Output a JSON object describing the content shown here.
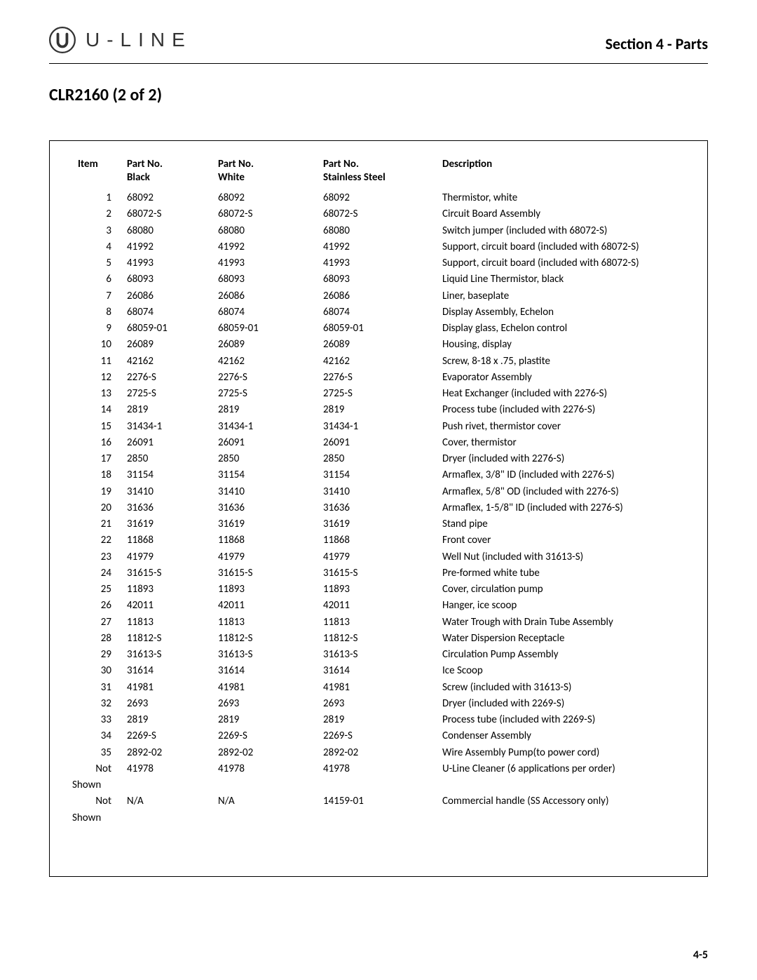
{
  "header": {
    "logo_text": "U-LINE",
    "section_title": "Section 4 - Parts"
  },
  "subtitle": "CLR2160 (2 of 2)",
  "page_number": "4-5",
  "table": {
    "columns": {
      "item": "Item",
      "black_l1": "Part No.",
      "black_l2": "Black",
      "white_l1": "Part No.",
      "white_l2": "White",
      "ss_l1": "Part No.",
      "ss_l2": "Stainless Steel",
      "desc": "Description"
    },
    "rows": [
      {
        "item": "1",
        "black": "68092",
        "white": "68092",
        "ss": "68092",
        "desc": "Thermistor, white"
      },
      {
        "item": "2",
        "black": "68072-S",
        "white": "68072-S",
        "ss": "68072-S",
        "desc": "Circuit Board Assembly"
      },
      {
        "item": "3",
        "black": "68080",
        "white": "68080",
        "ss": "68080",
        "desc": "Switch jumper (included with 68072-S)"
      },
      {
        "item": "4",
        "black": "41992",
        "white": "41992",
        "ss": "41992",
        "desc": "Support, circuit board (included with 68072-S)"
      },
      {
        "item": "5",
        "black": "41993",
        "white": "41993",
        "ss": "41993",
        "desc": "Support, circuit board (included with 68072-S)"
      },
      {
        "item": "6",
        "black": "68093",
        "white": "68093",
        "ss": "68093",
        "desc": "Liquid Line Thermistor, black"
      },
      {
        "item": "7",
        "black": "26086",
        "white": "26086",
        "ss": "26086",
        "desc": "Liner, baseplate"
      },
      {
        "item": "8",
        "black": "68074",
        "white": "68074",
        "ss": "68074",
        "desc": "Display Assembly, Echelon"
      },
      {
        "item": "9",
        "black": "68059-01",
        "white": "68059-01",
        "ss": "68059-01",
        "desc": "Display glass, Echelon control"
      },
      {
        "item": "10",
        "black": "26089",
        "white": "26089",
        "ss": "26089",
        "desc": "Housing, display"
      },
      {
        "item": "11",
        "black": "42162",
        "white": "42162",
        "ss": "42162",
        "desc": "Screw, 8-18 x .75, plastite"
      },
      {
        "item": "12",
        "black": "2276-S",
        "white": "2276-S",
        "ss": "2276-S",
        "desc": "Evaporator Assembly"
      },
      {
        "item": "13",
        "black": "2725-S",
        "white": "2725-S",
        "ss": "2725-S",
        "desc": "Heat Exchanger (included with 2276-S)"
      },
      {
        "item": "14",
        "black": "2819",
        "white": "2819",
        "ss": "2819",
        "desc": "Process tube (included with 2276-S)"
      },
      {
        "item": "15",
        "black": "31434-1",
        "white": "31434-1",
        "ss": "31434-1",
        "desc": "Push rivet, thermistor cover"
      },
      {
        "item": "16",
        "black": "26091",
        "white": "26091",
        "ss": "26091",
        "desc": "Cover, thermistor"
      },
      {
        "item": "17",
        "black": "2850",
        "white": "2850",
        "ss": "2850",
        "desc": "Dryer (included with 2276-S)"
      },
      {
        "item": "18",
        "black": "31154",
        "white": "31154",
        "ss": "31154",
        "desc": "Armaflex, 3/8\" ID (included with 2276-S)"
      },
      {
        "item": "19",
        "black": "31410",
        "white": "31410",
        "ss": "31410",
        "desc": "Armaflex, 5/8\" OD (included with 2276-S)"
      },
      {
        "item": "20",
        "black": "31636",
        "white": "31636",
        "ss": "31636",
        "desc": "Armaflex, 1-5/8\" ID (included with 2276-S)"
      },
      {
        "item": "21",
        "black": "31619",
        "white": "31619",
        "ss": "31619",
        "desc": "Stand pipe"
      },
      {
        "item": "22",
        "black": "11868",
        "white": "11868",
        "ss": "11868",
        "desc": "Front cover"
      },
      {
        "item": "23",
        "black": "41979",
        "white": "41979",
        "ss": "41979",
        "desc": "Well Nut (included with 31613-S)"
      },
      {
        "item": "24",
        "black": "31615-S",
        "white": "31615-S",
        "ss": "31615-S",
        "desc": "Pre-formed white tube"
      },
      {
        "item": "25",
        "black": "11893",
        "white": "11893",
        "ss": "11893",
        "desc": "Cover, circulation pump"
      },
      {
        "item": "26",
        "black": "42011",
        "white": "42011",
        "ss": "42011",
        "desc": "Hanger, ice scoop"
      },
      {
        "item": "27",
        "black": "11813",
        "white": "11813",
        "ss": "11813",
        "desc": "Water Trough with Drain Tube Assembly"
      },
      {
        "item": "28",
        "black": "11812-S",
        "white": "11812-S",
        "ss": "11812-S",
        "desc": "Water Dispersion Receptacle"
      },
      {
        "item": "29",
        "black": "31613-S",
        "white": "31613-S",
        "ss": "31613-S",
        "desc": "Circulation Pump Assembly"
      },
      {
        "item": "30",
        "black": "31614",
        "white": "31614",
        "ss": "31614",
        "desc": "Ice Scoop"
      },
      {
        "item": "31",
        "black": "41981",
        "white": "41981",
        "ss": "41981",
        "desc": "Screw (included with 31613-S)"
      },
      {
        "item": "32",
        "black": "2693",
        "white": "2693",
        "ss": "2693",
        "desc": "Dryer (included with 2269-S)"
      },
      {
        "item": "33",
        "black": "2819",
        "white": "2819",
        "ss": "2819",
        "desc": "Process tube (included with 2269-S)"
      },
      {
        "item": "34",
        "black": "2269-S",
        "white": "2269-S",
        "ss": "2269-S",
        "desc": "Condenser Assembly"
      },
      {
        "item": "35",
        "black": "2892-02",
        "white": "2892-02",
        "ss": "2892-02",
        "desc": "Wire Assembly Pump(to power cord)"
      }
    ],
    "ns_rows": [
      {
        "item1": "Not",
        "item2": "Shown",
        "black": "41978",
        "white": "41978",
        "ss": "41978",
        "desc": "U-Line Cleaner (6 applications per order)"
      },
      {
        "item1": "Not",
        "item2": "Shown",
        "black": "N/A",
        "white": "N/A",
        "ss": "14159-01",
        "desc": "Commercial handle (SS Accessory only)"
      }
    ]
  }
}
